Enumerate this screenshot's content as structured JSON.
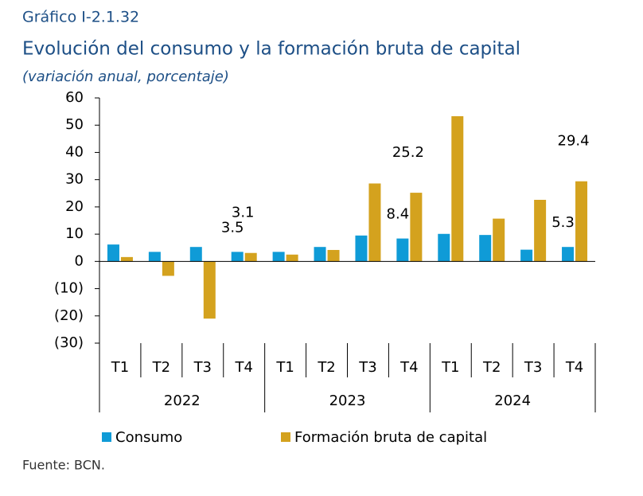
{
  "chart_data": {
    "type": "bar",
    "label": "Gráfico I-2.1.32",
    "title": "Evolución del consumo y la formación bruta de capital",
    "subtitle": "(variación anual, porcentaje)",
    "source": "Fuente: BCN.",
    "categories": [
      "T1",
      "T2",
      "T3",
      "T4",
      "T1",
      "T2",
      "T3",
      "T4",
      "T1",
      "T2",
      "T3",
      "T4"
    ],
    "groups": [
      "2022",
      "2023",
      "2024"
    ],
    "series": [
      {
        "name": "Consumo",
        "color": "#0f9bd7",
        "values": [
          6.2,
          3.5,
          5.3,
          3.5,
          3.5,
          5.3,
          9.5,
          8.4,
          10.1,
          9.7,
          4.3,
          5.3
        ],
        "value_labels": [
          null,
          null,
          null,
          "3.5",
          null,
          null,
          null,
          "8.4",
          null,
          null,
          null,
          "5.3"
        ]
      },
      {
        "name": "Formación bruta de capital",
        "color": "#d4a21e",
        "values": [
          1.6,
          -5.3,
          -21.0,
          3.1,
          2.5,
          4.2,
          28.6,
          25.2,
          53.3,
          15.7,
          22.6,
          29.4
        ],
        "value_labels": [
          null,
          null,
          null,
          "3.1",
          null,
          null,
          null,
          "25.2",
          null,
          null,
          null,
          "29.4"
        ]
      }
    ],
    "ylim": [
      -30,
      60
    ],
    "yticks": [
      {
        "value": -30,
        "label": "(30)"
      },
      {
        "value": -20,
        "label": "(20)"
      },
      {
        "value": -10,
        "label": "(10)"
      },
      0,
      10,
      20,
      30,
      40,
      50,
      60
    ]
  }
}
